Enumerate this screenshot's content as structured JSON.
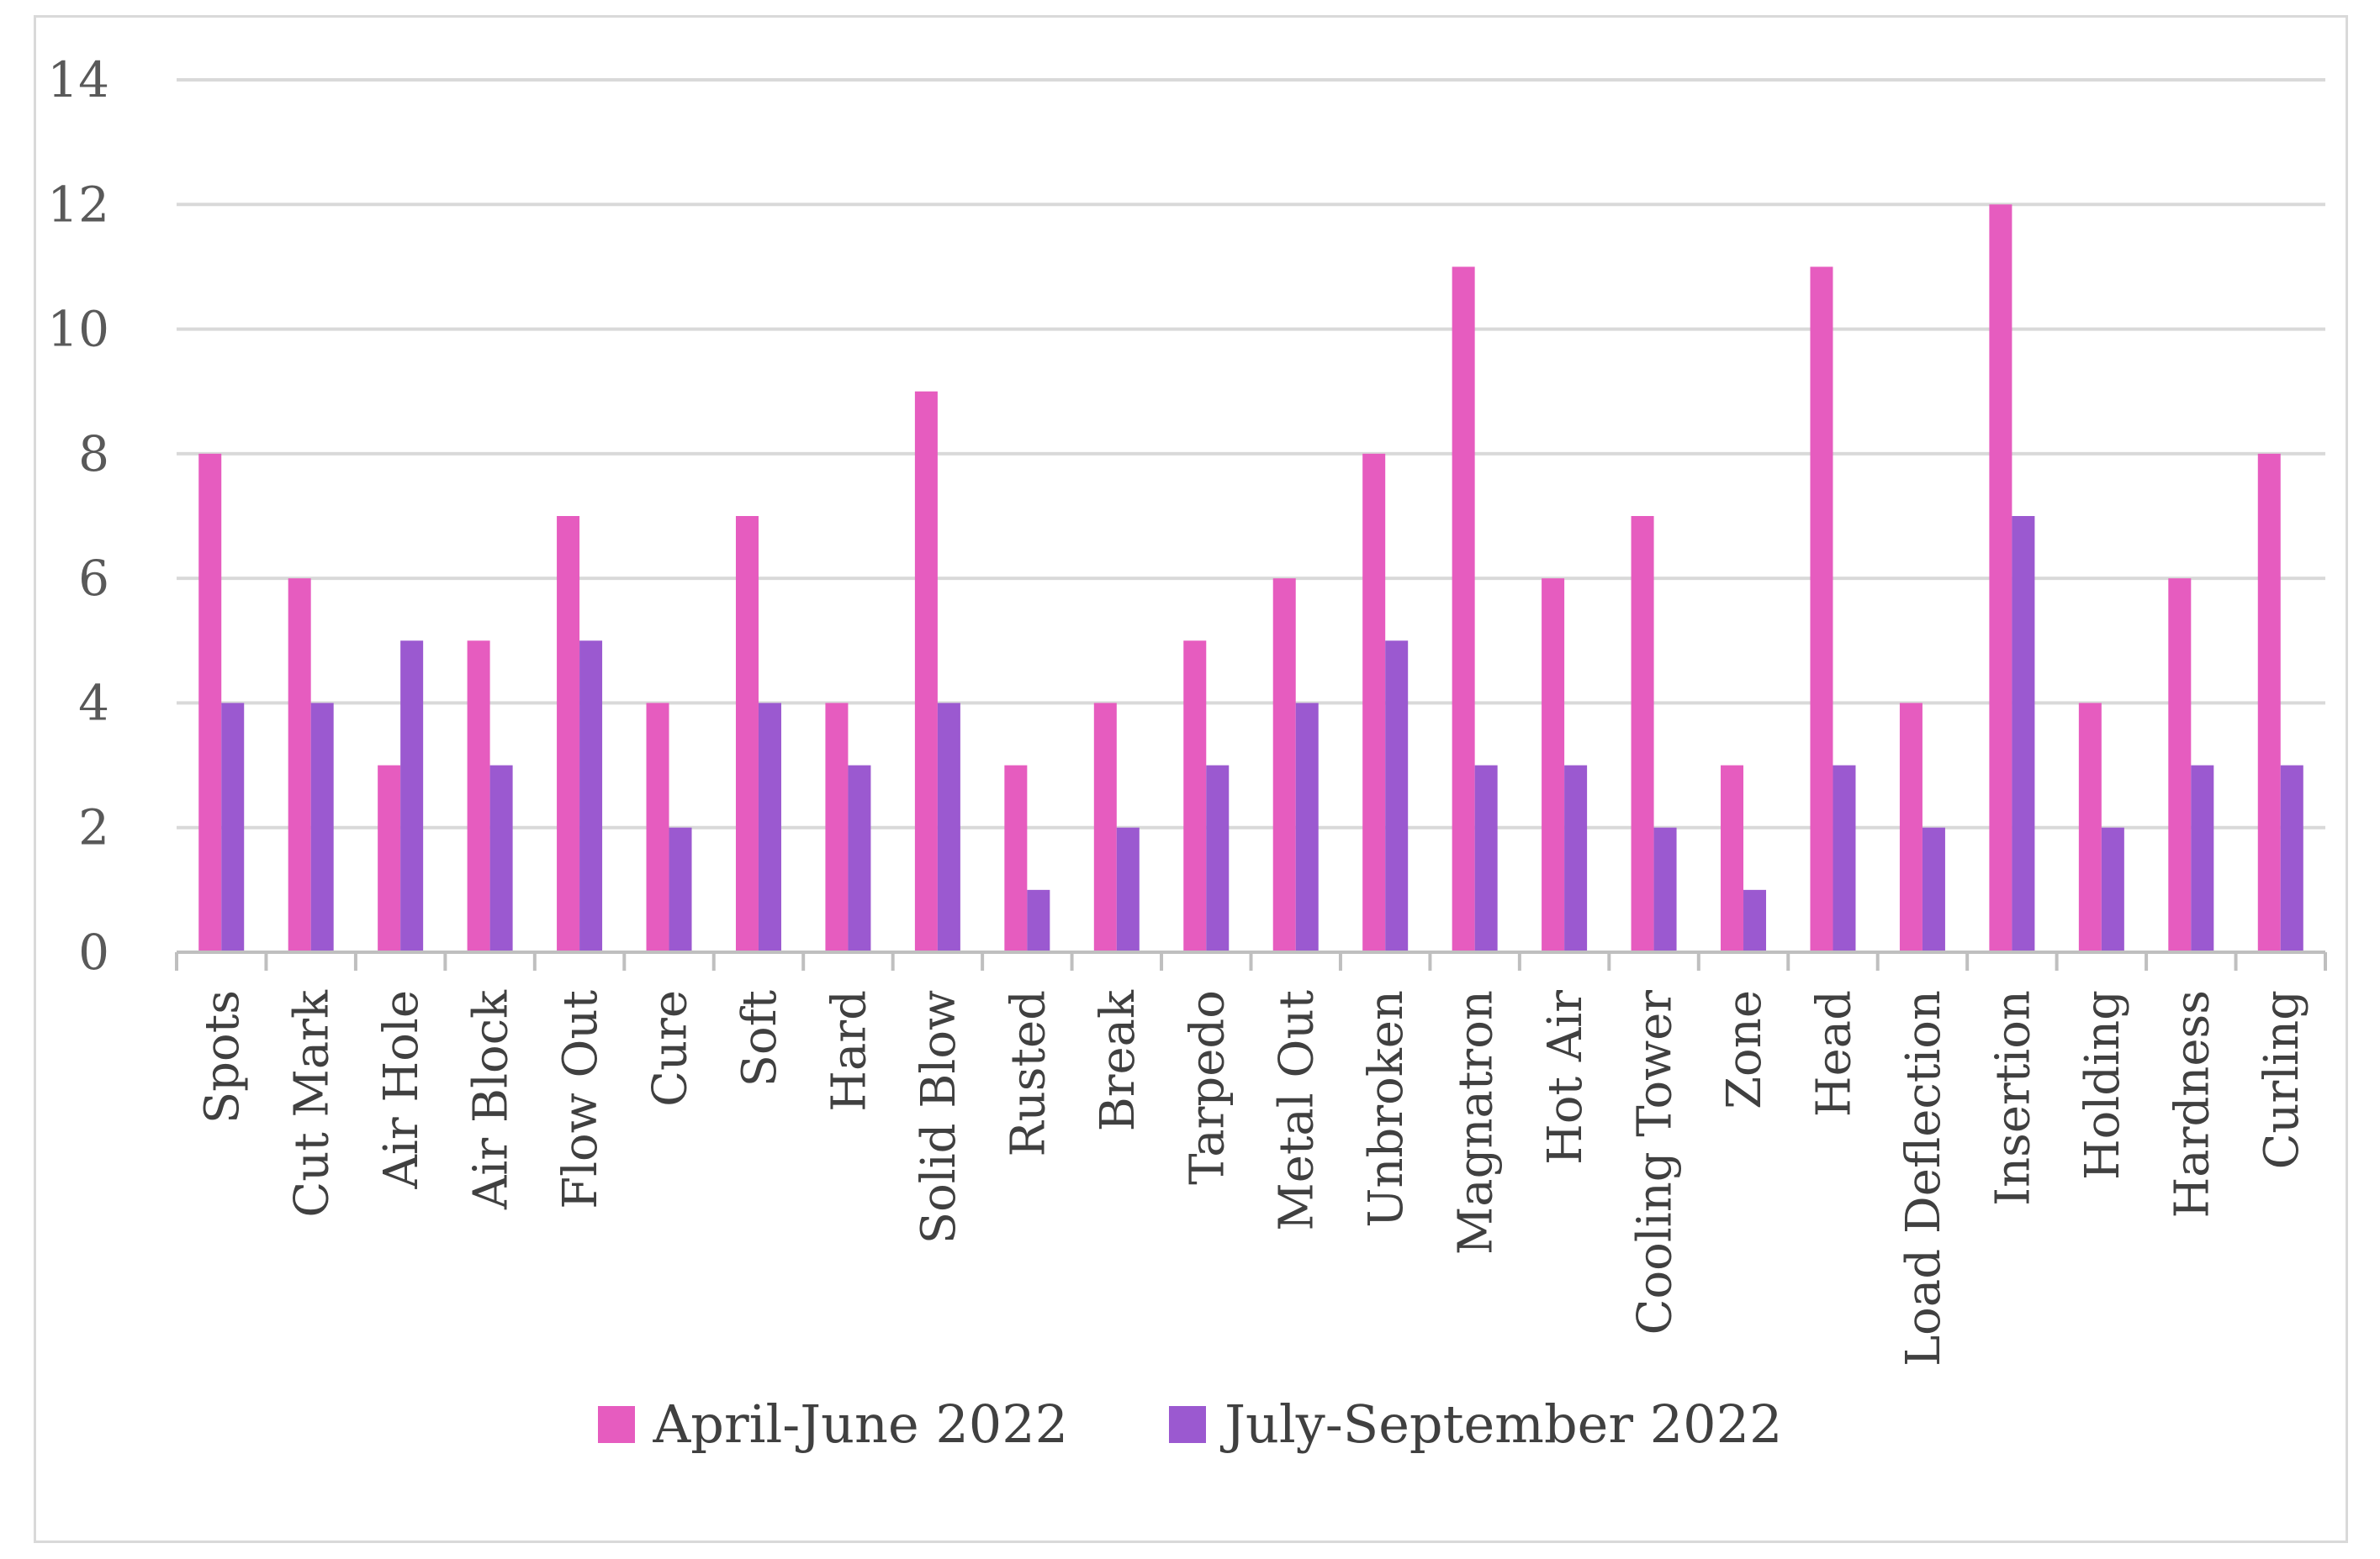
{
  "chart_data": {
    "type": "bar",
    "title": "",
    "xlabel": "",
    "ylabel": "",
    "ylim": [
      0,
      14
    ],
    "yticks": [
      0,
      2,
      4,
      6,
      8,
      10,
      12,
      14
    ],
    "grid": true,
    "legend_position": "bottom",
    "categories": [
      "Spots",
      "Cut Mark",
      "Air Hole",
      "Air Block",
      "Flow Out",
      "Cure",
      "Soft",
      "Hard",
      "Solid Blow",
      "Rusted",
      "Break",
      "Tarpedo",
      "Metal Out",
      "Unbroken",
      "Magnatron",
      "Hot Air",
      "Cooling Tower",
      "Zone",
      "Head",
      "Load Deflection",
      "Insertion",
      "Holding",
      "Hardness",
      "Curling"
    ],
    "series": [
      {
        "name": "April-June 2022",
        "color": "#e65cbf",
        "values": [
          8,
          6,
          3,
          5,
          7,
          4,
          7,
          4,
          9,
          3,
          4,
          5,
          6,
          8,
          11,
          6,
          7,
          3,
          11,
          4,
          12,
          4,
          6,
          8
        ]
      },
      {
        "name": "July-September 2022",
        "color": "#9b59d0",
        "values": [
          4,
          4,
          5,
          3,
          5,
          2,
          4,
          3,
          4,
          1,
          2,
          3,
          4,
          5,
          3,
          3,
          2,
          1,
          3,
          2,
          7,
          2,
          3,
          3
        ]
      }
    ]
  }
}
